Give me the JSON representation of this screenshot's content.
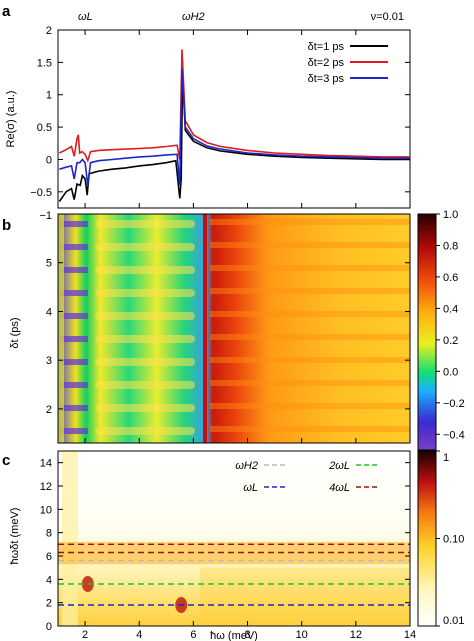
{
  "chart_data": [
    {
      "panel": "a",
      "type": "line",
      "top_labels": [
        "ωL",
        "ωH2"
      ],
      "annotation": "ν=0.01",
      "ylabel": "Re(σ) (a.u.)",
      "xlim": [
        1,
        14
      ],
      "ylim": [
        -0.75,
        2
      ],
      "yticks": [
        "−0.5",
        "0",
        "0.5",
        "1",
        "1.5",
        "2"
      ],
      "legend_position": "top-right",
      "series": [
        {
          "name": "δt=1 ps",
          "color": "#000000",
          "points": [
            [
              1.05,
              -0.65
            ],
            [
              1.3,
              -0.5
            ],
            [
              1.5,
              -0.45
            ],
            [
              1.6,
              -0.62
            ],
            [
              1.7,
              -0.38
            ],
            [
              1.82,
              -0.4
            ],
            [
              1.9,
              -0.25
            ],
            [
              2.0,
              -0.3
            ],
            [
              2.08,
              -0.55
            ],
            [
              2.15,
              -0.22
            ],
            [
              2.5,
              -0.18
            ],
            [
              3,
              -0.15
            ],
            [
              3.5,
              -0.13
            ],
            [
              4,
              -0.1
            ],
            [
              4.5,
              -0.08
            ],
            [
              5,
              -0.05
            ],
            [
              5.35,
              -0.02
            ],
            [
              5.5,
              -0.6
            ],
            [
              5.55,
              -0.3
            ],
            [
              5.6,
              1.35
            ],
            [
              5.7,
              0.45
            ],
            [
              6,
              0.28
            ],
            [
              6.5,
              0.18
            ],
            [
              7,
              0.13
            ],
            [
              8,
              0.08
            ],
            [
              9,
              0.05
            ],
            [
              10,
              0.03
            ],
            [
              11,
              0.02
            ],
            [
              12,
              0.01
            ],
            [
              13,
              0.0
            ],
            [
              14,
              0.0
            ]
          ]
        },
        {
          "name": "δt=2 ps",
          "color": "#e01b1b",
          "points": [
            [
              1.05,
              0.1
            ],
            [
              1.3,
              0.15
            ],
            [
              1.5,
              0.2
            ],
            [
              1.6,
              0.05
            ],
            [
              1.7,
              0.32
            ],
            [
              1.75,
              0.38
            ],
            [
              1.8,
              0.1
            ],
            [
              1.9,
              0.12
            ],
            [
              2.0,
              0.08
            ],
            [
              2.1,
              -0.02
            ],
            [
              2.2,
              0.12
            ],
            [
              2.5,
              0.14
            ],
            [
              3,
              0.15
            ],
            [
              3.5,
              0.16
            ],
            [
              4,
              0.17
            ],
            [
              4.5,
              0.18
            ],
            [
              5,
              0.2
            ],
            [
              5.4,
              0.22
            ],
            [
              5.5,
              0.0
            ],
            [
              5.58,
              1.7
            ],
            [
              5.7,
              0.6
            ],
            [
              6,
              0.38
            ],
            [
              6.5,
              0.26
            ],
            [
              7,
              0.2
            ],
            [
              8,
              0.14
            ],
            [
              9,
              0.1
            ],
            [
              10,
              0.08
            ],
            [
              11,
              0.06
            ],
            [
              12,
              0.05
            ],
            [
              13,
              0.04
            ],
            [
              14,
              0.04
            ]
          ]
        },
        {
          "name": "δt=3 ps",
          "color": "#1d27c8",
          "points": [
            [
              1.05,
              -0.15
            ],
            [
              1.3,
              -0.12
            ],
            [
              1.5,
              -0.1
            ],
            [
              1.6,
              -0.3
            ],
            [
              1.7,
              -0.05
            ],
            [
              1.8,
              -0.05
            ],
            [
              1.9,
              0.0
            ],
            [
              2.0,
              -0.05
            ],
            [
              2.1,
              -0.4
            ],
            [
              2.2,
              -0.05
            ],
            [
              2.5,
              -0.02
            ],
            [
              3,
              0.0
            ],
            [
              3.5,
              0.02
            ],
            [
              4,
              0.04
            ],
            [
              4.5,
              0.05
            ],
            [
              5,
              0.07
            ],
            [
              5.4,
              0.08
            ],
            [
              5.5,
              -0.4
            ],
            [
              5.58,
              1.4
            ],
            [
              5.7,
              0.5
            ],
            [
              6,
              0.32
            ],
            [
              6.5,
              0.21
            ],
            [
              7,
              0.16
            ],
            [
              8,
              0.1
            ],
            [
              9,
              0.07
            ],
            [
              10,
              0.05
            ],
            [
              11,
              0.04
            ],
            [
              12,
              0.03
            ],
            [
              13,
              0.02
            ],
            [
              14,
              0.02
            ]
          ]
        }
      ]
    },
    {
      "panel": "b",
      "type": "heatmap",
      "ylabel": "δt (ps)",
      "xlim": [
        1,
        14
      ],
      "ylim": [
        1.3,
        6
      ],
      "yticks": [
        "2",
        "3",
        "4",
        "5"
      ],
      "colorbar": {
        "ticks": [
          "1.0",
          "0.8",
          "0.6",
          "0.4",
          "0.2",
          "0.0",
          "−0.2",
          "−0.4"
        ],
        "range": [
          -0.5,
          1.0
        ]
      },
      "extra_tick": "−1"
    },
    {
      "panel": "c",
      "type": "heatmap",
      "xlabel": "ħω (meV)",
      "ylabel": "ħωδt (meV)",
      "xlim": [
        1,
        14
      ],
      "ylim": [
        0,
        15
      ],
      "xticks": [
        "2",
        "4",
        "6",
        "8",
        "10",
        "12",
        "14"
      ],
      "yticks": [
        "0",
        "2",
        "4",
        "6",
        "8",
        "10",
        "12",
        "14"
      ],
      "lines": [
        {
          "name": "ωH2",
          "y": 5.6,
          "color": "#bbbbbb"
        },
        {
          "name": "ωL",
          "y": 1.8,
          "color": "#1d27c8"
        },
        {
          "name": "2ωL",
          "y": 3.6,
          "color": "#22c422"
        },
        {
          "name": "4ωL",
          "y": 7.0,
          "color": "#a01010"
        },
        {
          "name": "",
          "y": 6.3,
          "color": "#a01010"
        }
      ],
      "colorbar": {
        "ticks": [
          "1",
          "0.10",
          "0.01"
        ],
        "scale": "log"
      }
    }
  ],
  "panels": {
    "a": "a",
    "b": "b",
    "c": "c"
  }
}
